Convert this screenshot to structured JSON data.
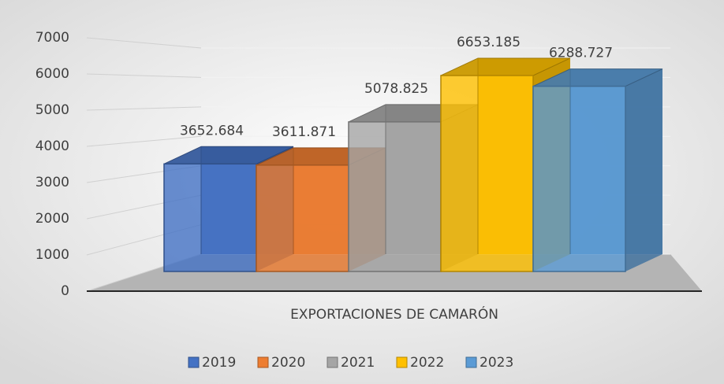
{
  "chart_data": {
    "type": "bar3d",
    "categories": [
      "EXPORTACIONES DE CAMARÓN"
    ],
    "series": [
      {
        "name": "2019",
        "color": "#4472c4",
        "values": [
          3652.684
        ]
      },
      {
        "name": "2020",
        "color": "#ed7d31",
        "values": [
          3611.871
        ]
      },
      {
        "name": "2021",
        "color": "#a5a5a5",
        "values": [
          5078.825
        ]
      },
      {
        "name": "2022",
        "color": "#ffc000",
        "values": [
          6653.185
        ]
      },
      {
        "name": "2023",
        "color": "#5b9bd5",
        "values": [
          6288.727
        ]
      }
    ],
    "ylim": [
      0,
      7000
    ],
    "yticks": [
      0,
      1000,
      2000,
      3000,
      4000,
      5000,
      6000,
      7000
    ],
    "grid": true,
    "legend": "bottom"
  }
}
